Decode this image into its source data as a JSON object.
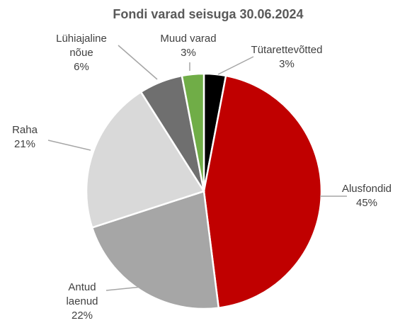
{
  "chart_data": {
    "type": "pie",
    "title": "Fondi varad seisuga 30.06.2024",
    "categories": [
      "Tütarettevõtted",
      "Alusfondid",
      "Antud laenud",
      "Raha",
      "Lühiajaline nõue",
      "Muud varad"
    ],
    "values": [
      3,
      45,
      22,
      21,
      6,
      3
    ],
    "value_labels": [
      "3%",
      "45%",
      "22%",
      "21%",
      "6%",
      "3%"
    ],
    "colors": [
      "#000000",
      "#c00000",
      "#a6a6a6",
      "#d9d9d9",
      "#6f6f6f",
      "#70ad47"
    ]
  }
}
